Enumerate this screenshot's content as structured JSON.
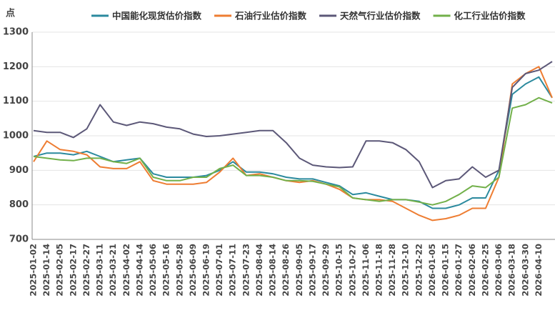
{
  "chart_data": {
    "type": "line",
    "y_label": "点",
    "categories": [
      "2025-01-02",
      "2025-01-14",
      "2025-02-05",
      "2025-02-17",
      "2025-02-27",
      "2025-03-11",
      "2025-03-21",
      "2025-04-02",
      "2025-04-14",
      "2025-05-06",
      "2025-05-16",
      "2025-05-28",
      "2025-06-09",
      "2025-06-19",
      "2025-07-01",
      "2025-07-11",
      "2025-07-23",
      "2025-08-04",
      "2025-08-14",
      "2025-08-26",
      "2025-09-05",
      "2025-09-17",
      "2025-09-29",
      "2025-10-15",
      "2025-10-27",
      "2025-11-06",
      "2025-11-18",
      "2025-11-28",
      "2025-12-10",
      "2025-12-22",
      "2026-01-05",
      "2026-01-15",
      "2026-01-27",
      "2026-02-06",
      "2026-02-25",
      "2026-03-06",
      "2026-03-18",
      "2026-03-30",
      "2026-04-10",
      null
    ],
    "series": [
      {
        "name": "中国能化现货估价指数",
        "color": "#2b8a9e",
        "values": [
          940,
          950,
          950,
          945,
          955,
          940,
          925,
          930,
          935,
          890,
          880,
          880,
          880,
          885,
          900,
          925,
          895,
          895,
          890,
          880,
          875,
          875,
          865,
          855,
          830,
          835,
          825,
          815,
          815,
          810,
          790,
          790,
          800,
          820,
          820,
          900,
          1120,
          1150,
          1170,
          1110
        ]
      },
      {
        "name": "石油行业估价指数",
        "color": "#ee7d32",
        "values": [
          925,
          985,
          960,
          955,
          945,
          910,
          905,
          905,
          925,
          870,
          860,
          860,
          860,
          865,
          895,
          935,
          885,
          890,
          880,
          870,
          865,
          870,
          860,
          845,
          820,
          815,
          815,
          810,
          790,
          770,
          755,
          760,
          770,
          790,
          790,
          880,
          1150,
          1180,
          1200,
          1110
        ]
      },
      {
        "name": "天然气行业估价指数",
        "color": "#5c5878",
        "values": [
          1015,
          1010,
          1010,
          995,
          1020,
          1090,
          1040,
          1030,
          1040,
          1035,
          1025,
          1020,
          1005,
          998,
          1000,
          1005,
          1010,
          1015,
          1015,
          980,
          935,
          915,
          910,
          908,
          910,
          985,
          985,
          980,
          960,
          925,
          850,
          870,
          875,
          910,
          880,
          900,
          1140,
          1180,
          1190,
          1215
        ]
      },
      {
        "name": "化工行业估价指数",
        "color": "#72b04a",
        "values": [
          940,
          935,
          930,
          928,
          935,
          935,
          925,
          920,
          935,
          880,
          870,
          870,
          880,
          880,
          905,
          915,
          885,
          885,
          880,
          870,
          870,
          868,
          860,
          852,
          820,
          815,
          810,
          815,
          815,
          808,
          800,
          810,
          830,
          855,
          850,
          880,
          1080,
          1090,
          1110,
          1095
        ]
      }
    ],
    "ylim": [
      700,
      1300
    ],
    "yticks": [
      700,
      800,
      900,
      1000,
      1100,
      1200,
      1300
    ],
    "grid": true
  }
}
